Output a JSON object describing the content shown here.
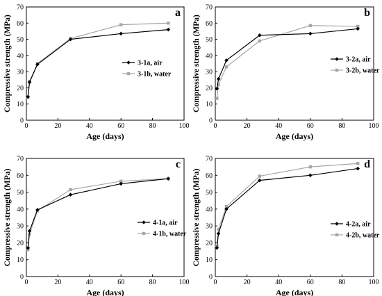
{
  "colors": {
    "air": "#000000",
    "water": "#a6a6a6",
    "axis": "#000000"
  },
  "chart_data": [
    {
      "type": "line",
      "panel_label": "a",
      "xlabel": "Age (days)",
      "ylabel": "Compressive strength (MPa)",
      "xlim": [
        0,
        100
      ],
      "ylim": [
        0,
        70
      ],
      "xticks": [
        0,
        20,
        40,
        60,
        80,
        100
      ],
      "yticks": [
        0,
        10,
        20,
        30,
        40,
        50,
        60,
        70
      ],
      "grid": false,
      "legend_position": "center-right",
      "series": [
        {
          "name": "3-1a, air",
          "marker": "diamond",
          "color": "#000000",
          "x": [
            1,
            2,
            7,
            28,
            60,
            90
          ],
          "y": [
            14.5,
            23.5,
            34.5,
            50,
            53.5,
            56
          ]
        },
        {
          "name": "3-1b, water",
          "marker": "square",
          "color": "#a6a6a6",
          "x": [
            1,
            2,
            7,
            28,
            60,
            90
          ],
          "y": [
            14,
            24,
            35,
            50.5,
            59,
            60
          ]
        }
      ]
    },
    {
      "type": "line",
      "panel_label": "b",
      "xlabel": "Age (days)",
      "ylabel": "Compressive strength (MPa)",
      "xlim": [
        0,
        100
      ],
      "ylim": [
        0,
        70
      ],
      "xticks": [
        0,
        20,
        40,
        60,
        80,
        100
      ],
      "yticks": [
        0,
        10,
        20,
        30,
        40,
        50,
        60,
        70
      ],
      "grid": false,
      "legend_position": "center-right",
      "series": [
        {
          "name": "3-2a, air",
          "marker": "diamond",
          "color": "#000000",
          "x": [
            1,
            2,
            7,
            28,
            60,
            90
          ],
          "y": [
            19.5,
            25.5,
            37,
            52.5,
            53.5,
            56.5
          ]
        },
        {
          "name": "3-2b, water",
          "marker": "square",
          "color": "#a6a6a6",
          "x": [
            1,
            2,
            7,
            28,
            60,
            90
          ],
          "y": [
            13.5,
            22,
            33,
            49,
            58.5,
            58
          ]
        }
      ]
    },
    {
      "type": "line",
      "panel_label": "c",
      "xlabel": "Age (days)",
      "ylabel": "Compressive strength (MPa)",
      "xlim": [
        0,
        100
      ],
      "ylim": [
        0,
        70
      ],
      "xticks": [
        0,
        20,
        40,
        60,
        80,
        100
      ],
      "yticks": [
        0,
        10,
        20,
        30,
        40,
        50,
        60,
        70
      ],
      "grid": false,
      "legend_position": "center-right",
      "series": [
        {
          "name": "4-1a, air",
          "marker": "diamond",
          "color": "#000000",
          "x": [
            1,
            2,
            7,
            28,
            60,
            90
          ],
          "y": [
            17,
            27,
            39.5,
            48.5,
            55,
            58
          ]
        },
        {
          "name": "4-1b, water",
          "marker": "square",
          "color": "#a6a6a6",
          "x": [
            1,
            2,
            7,
            28,
            60,
            90
          ],
          "y": [
            16,
            25,
            39,
            51.5,
            56.5,
            58
          ]
        }
      ]
    },
    {
      "type": "line",
      "panel_label": "d",
      "xlabel": "Age (days)",
      "ylabel": "Compressive strength (MPa)",
      "xlim": [
        0,
        100
      ],
      "ylim": [
        0,
        70
      ],
      "xticks": [
        0,
        20,
        40,
        60,
        80,
        100
      ],
      "yticks": [
        0,
        10,
        20,
        30,
        40,
        50,
        60,
        70
      ],
      "grid": false,
      "legend_position": "center-right",
      "series": [
        {
          "name": "4-2a, air",
          "marker": "diamond",
          "color": "#000000",
          "x": [
            1,
            2,
            7,
            28,
            60,
            90
          ],
          "y": [
            17,
            25.5,
            40,
            57,
            60,
            64
          ]
        },
        {
          "name": "4-2b, water",
          "marker": "square",
          "color": "#a6a6a6",
          "x": [
            1,
            2,
            7,
            28,
            60,
            90
          ],
          "y": [
            18,
            28,
            41.5,
            59.5,
            65,
            67
          ]
        }
      ]
    }
  ]
}
